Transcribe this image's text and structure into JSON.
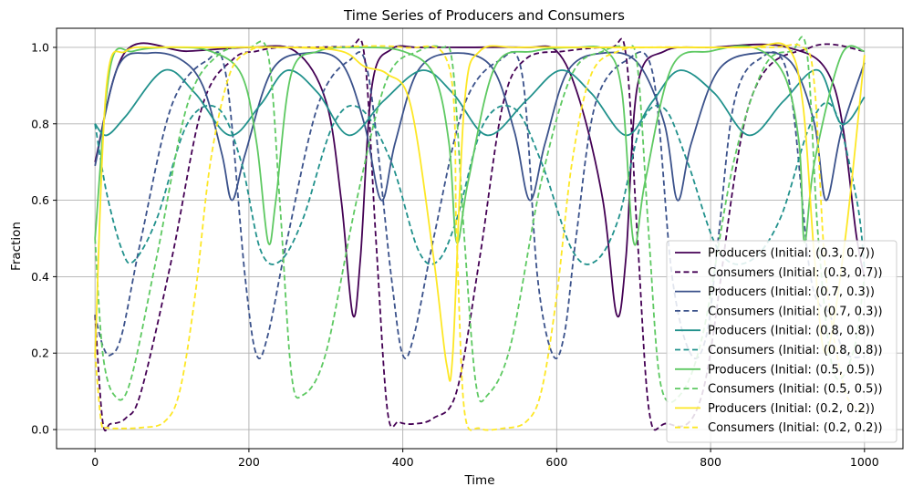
{
  "chart_data": {
    "type": "line",
    "title": "Time Series of Producers and Consumers",
    "xlabel": "Time",
    "ylabel": "Fraction",
    "xlim": [
      -50,
      1050
    ],
    "ylim": [
      -0.05,
      1.05
    ],
    "xticks": [
      0,
      200,
      400,
      600,
      800,
      1000
    ],
    "yticks": [
      0.0,
      0.2,
      0.4,
      0.6,
      0.8,
      1.0
    ],
    "xtick_labels": [
      "0",
      "200",
      "400",
      "600",
      "800",
      "1000"
    ],
    "ytick_labels": [
      "0.0",
      "0.2",
      "0.4",
      "0.6",
      "0.8",
      "1.0"
    ],
    "grid": true,
    "legend_location": "lower right",
    "series": [
      {
        "name": "Producers (Initial: (0.3, 0.7))",
        "color": "#440154",
        "style": "solid",
        "x": [
          0,
          40,
          120,
          200,
          260,
          300,
          320,
          335,
          345,
          360,
          385,
          420,
          480,
          560,
          600,
          630,
          660,
          678,
          690,
          705,
          740,
          800,
          900,
          960,
          990,
          1000
        ],
        "y": [
          0.7,
          0.99,
          0.99,
          1.0,
          0.99,
          0.86,
          0.6,
          0.3,
          0.45,
          0.9,
          0.995,
          1.0,
          1.0,
          1.0,
          0.99,
          0.86,
          0.6,
          0.3,
          0.45,
          0.9,
          0.99,
          1.0,
          1.0,
          0.9,
          0.5,
          0.4
        ]
      },
      {
        "name": "Consumers (Initial: (0.3, 0.7))",
        "color": "#440154",
        "style": "dashed",
        "x": [
          0,
          10,
          20,
          40,
          60,
          100,
          140,
          180,
          210,
          240,
          280,
          330,
          350,
          365,
          380,
          395,
          415,
          440,
          470,
          500,
          530,
          560,
          610,
          670,
          690,
          705,
          720,
          740,
          790,
          850,
          930,
          1000
        ],
        "y": [
          0.3,
          0.02,
          0.015,
          0.03,
          0.1,
          0.45,
          0.85,
          0.97,
          0.99,
          1.0,
          1.0,
          1.0,
          0.98,
          0.5,
          0.05,
          0.02,
          0.015,
          0.03,
          0.1,
          0.45,
          0.85,
          0.97,
          0.99,
          1.0,
          0.98,
          0.5,
          0.05,
          0.015,
          0.1,
          0.85,
          1.0,
          0.99
        ]
      },
      {
        "name": "Producers (Initial: (0.7, 0.3))",
        "color": "#3b528b",
        "style": "solid",
        "x": [
          0,
          30,
          70,
          110,
          140,
          165,
          178,
          195,
          230,
          275,
          320,
          350,
          372,
          390,
          420,
          465,
          515,
          545,
          565,
          585,
          615,
          660,
          705,
          740,
          757,
          775,
          810,
          860,
          905,
          935,
          950,
          970,
          1000
        ],
        "y": [
          0.69,
          0.95,
          0.985,
          0.97,
          0.9,
          0.72,
          0.6,
          0.72,
          0.94,
          0.985,
          0.96,
          0.8,
          0.6,
          0.75,
          0.94,
          0.985,
          0.95,
          0.78,
          0.6,
          0.75,
          0.94,
          0.985,
          0.96,
          0.8,
          0.6,
          0.75,
          0.94,
          0.985,
          0.96,
          0.8,
          0.6,
          0.78,
          0.96
        ]
      },
      {
        "name": "Consumers (Initial: (0.7, 0.3))",
        "color": "#3b528b",
        "style": "dashed",
        "x": [
          0,
          10,
          20,
          35,
          60,
          100,
          145,
          170,
          195,
          210,
          225,
          250,
          290,
          330,
          355,
          385,
          400,
          415,
          440,
          480,
          525,
          555,
          575,
          595,
          610,
          625,
          650,
          690,
          725,
          750,
          775,
          795,
          810,
          830,
          860,
          900,
          930,
          955,
          975,
          1000
        ],
        "y": [
          0.3,
          0.22,
          0.195,
          0.25,
          0.5,
          0.85,
          0.965,
          0.93,
          0.4,
          0.195,
          0.25,
          0.5,
          0.85,
          0.965,
          0.93,
          0.4,
          0.195,
          0.25,
          0.5,
          0.85,
          0.965,
          0.93,
          0.4,
          0.195,
          0.25,
          0.5,
          0.85,
          0.965,
          0.93,
          0.4,
          0.195,
          0.25,
          0.5,
          0.85,
          0.965,
          0.93,
          0.4,
          0.3,
          0.2,
          0.19
        ]
      },
      {
        "name": "Producers (Initial: (0.8, 0.8))",
        "color": "#21918c",
        "style": "solid",
        "x": [
          0,
          15,
          40,
          90,
          130,
          175,
          215,
          250,
          290,
          330,
          375,
          425,
          465,
          510,
          560,
          605,
          645,
          690,
          725,
          760,
          805,
          850,
          895,
          940,
          970,
          1000
        ],
        "y": [
          0.8,
          0.77,
          0.82,
          0.94,
          0.88,
          0.77,
          0.85,
          0.94,
          0.88,
          0.77,
          0.86,
          0.94,
          0.88,
          0.77,
          0.86,
          0.94,
          0.88,
          0.77,
          0.86,
          0.94,
          0.88,
          0.77,
          0.86,
          0.94,
          0.8,
          0.87
        ]
      },
      {
        "name": "Consumers (Initial: (0.8, 0.8))",
        "color": "#21918c",
        "style": "dashed",
        "x": [
          0,
          15,
          35,
          50,
          80,
          120,
          160,
          190,
          215,
          240,
          270,
          310,
          345,
          385,
          420,
          445,
          470,
          505,
          545,
          580,
          620,
          650,
          680,
          710,
          740,
          770,
          810,
          850,
          890,
          930,
          960,
          990,
          1000
        ],
        "y": [
          0.8,
          0.62,
          0.47,
          0.44,
          0.55,
          0.8,
          0.84,
          0.7,
          0.47,
          0.44,
          0.55,
          0.8,
          0.84,
          0.7,
          0.47,
          0.44,
          0.55,
          0.8,
          0.84,
          0.7,
          0.47,
          0.44,
          0.55,
          0.8,
          0.84,
          0.7,
          0.47,
          0.44,
          0.55,
          0.8,
          0.84,
          0.6,
          0.42
        ]
      },
      {
        "name": "Producers (Initial: (0.5, 0.5))",
        "color": "#5ec962",
        "style": "solid",
        "x": [
          0,
          20,
          50,
          100,
          150,
          190,
          210,
          225,
          235,
          255,
          290,
          340,
          400,
          440,
          460,
          470,
          485,
          520,
          570,
          625,
          665,
          685,
          700,
          715,
          750,
          800,
          855,
          895,
          915,
          922,
          935,
          970,
          1000
        ],
        "y": [
          0.5,
          0.95,
          0.99,
          1.0,
          0.99,
          0.93,
          0.75,
          0.49,
          0.6,
          0.93,
          0.99,
          1.0,
          0.99,
          0.93,
          0.75,
          0.49,
          0.65,
          0.95,
          0.99,
          1.0,
          0.99,
          0.88,
          0.49,
          0.65,
          0.95,
          0.99,
          1.0,
          0.93,
          0.75,
          0.49,
          0.7,
          0.98,
          0.99
        ]
      },
      {
        "name": "Consumers (Initial: (0.5, 0.5))",
        "color": "#5ec962",
        "style": "dashed",
        "x": [
          0,
          10,
          25,
          45,
          80,
          120,
          160,
          200,
          225,
          240,
          255,
          270,
          300,
          340,
          380,
          420,
          450,
          465,
          480,
          495,
          510,
          540,
          580,
          620,
          660,
          690,
          705,
          720,
          735,
          760,
          790,
          830,
          870,
          905,
          925,
          940,
          960,
          985,
          1000
        ],
        "y": [
          0.5,
          0.2,
          0.09,
          0.12,
          0.45,
          0.85,
          0.98,
          1.0,
          0.98,
          0.6,
          0.15,
          0.09,
          0.2,
          0.6,
          0.92,
          0.99,
          1.0,
          0.95,
          0.5,
          0.12,
          0.09,
          0.22,
          0.65,
          0.93,
          0.99,
          1.0,
          0.95,
          0.5,
          0.12,
          0.09,
          0.25,
          0.7,
          0.95,
          0.99,
          0.99,
          0.5,
          0.15,
          0.2,
          0.4
        ]
      },
      {
        "name": "Producers (Initial: (0.2, 0.2))",
        "color": "#fde725",
        "style": "solid",
        "x": [
          0,
          15,
          40,
          80,
          150,
          250,
          320,
          350,
          380,
          410,
          440,
          457,
          465,
          480,
          500,
          550,
          650,
          750,
          850,
          900,
          920,
          935,
          950,
          975,
          1000
        ],
        "y": [
          0.19,
          0.9,
          0.99,
          1.0,
          1.0,
          1.0,
          0.99,
          0.95,
          0.93,
          0.85,
          0.45,
          0.17,
          0.2,
          0.85,
          0.99,
          1.0,
          1.0,
          1.0,
          1.0,
          1.0,
          0.85,
          0.45,
          0.2,
          0.5,
          0.98
        ]
      },
      {
        "name": "Consumers (Initial: (0.2, 0.2))",
        "color": "#fde725",
        "style": "dashed",
        "x": [
          0,
          8,
          15,
          30,
          60,
          90,
          110,
          130,
          150,
          175,
          200,
          220,
          250,
          300,
          400,
          460,
          470,
          480,
          500,
          530,
          560,
          580,
          600,
          620,
          645,
          680,
          720,
          800,
          880,
          920,
          935,
          950,
          975,
          1000
        ],
        "y": [
          0.2,
          0.02,
          0.005,
          0.003,
          0.005,
          0.02,
          0.1,
          0.35,
          0.7,
          0.93,
          0.99,
          1.0,
          1.0,
          1.0,
          1.0,
          0.95,
          0.5,
          0.05,
          0.003,
          0.003,
          0.02,
          0.1,
          0.35,
          0.7,
          0.93,
          0.99,
          1.0,
          1.0,
          1.0,
          1.0,
          0.9,
          0.4,
          0.1,
          0.05
        ]
      }
    ]
  }
}
